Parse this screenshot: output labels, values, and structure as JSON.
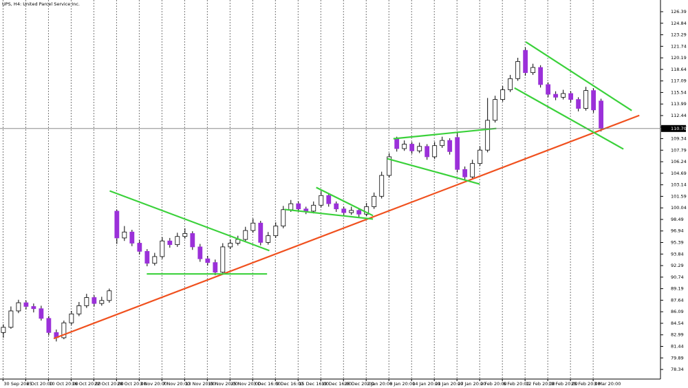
{
  "chart_data": {
    "type": "candlestick",
    "title": "UPS, H4: United Parcel Service Inc.",
    "up_color": "#ffffff",
    "down_color": "#9b30d9",
    "ohlc": [
      [
        83.3,
        84.4,
        82.6,
        84.0
      ],
      [
        84.0,
        86.8,
        83.8,
        86.2
      ],
      [
        86.2,
        87.7,
        85.9,
        87.3
      ],
      [
        87.3,
        87.6,
        86.4,
        86.8
      ],
      [
        86.8,
        87.2,
        86.0,
        86.5
      ],
      [
        86.5,
        86.9,
        84.9,
        85.2
      ],
      [
        85.2,
        85.5,
        82.9,
        83.3
      ],
      [
        83.3,
        83.7,
        82.1,
        82.6
      ],
      [
        82.6,
        84.9,
        82.4,
        84.6
      ],
      [
        84.6,
        86.2,
        84.3,
        85.8
      ],
      [
        85.8,
        87.4,
        85.5,
        86.9
      ],
      [
        86.9,
        88.5,
        86.6,
        88.0
      ],
      [
        88.0,
        88.3,
        86.8,
        87.2
      ],
      [
        87.2,
        88.1,
        86.9,
        87.6
      ],
      [
        87.6,
        89.2,
        87.3,
        88.9
      ],
      [
        99.6,
        99.8,
        95.2,
        96.0
      ],
      [
        96.0,
        97.6,
        95.6,
        96.8
      ],
      [
        96.8,
        97.1,
        94.9,
        95.3
      ],
      [
        95.3,
        95.7,
        93.8,
        94.2
      ],
      [
        94.2,
        94.5,
        92.2,
        92.6
      ],
      [
        92.6,
        94.0,
        92.3,
        93.5
      ],
      [
        93.5,
        96.1,
        93.2,
        95.6
      ],
      [
        95.6,
        96.0,
        94.7,
        95.1
      ],
      [
        95.1,
        96.7,
        94.8,
        96.2
      ],
      [
        96.2,
        97.3,
        95.9,
        96.6
      ],
      [
        96.6,
        96.9,
        94.4,
        94.8
      ],
      [
        94.8,
        95.2,
        92.8,
        93.2
      ],
      [
        93.2,
        93.6,
        92.3,
        92.7
      ],
      [
        92.7,
        93.1,
        91.0,
        91.4
      ],
      [
        91.4,
        95.3,
        91.2,
        94.8
      ],
      [
        94.8,
        95.8,
        94.5,
        95.3
      ],
      [
        95.3,
        96.3,
        95.0,
        95.8
      ],
      [
        95.8,
        97.5,
        95.5,
        97.0
      ],
      [
        97.0,
        98.6,
        96.7,
        98.0
      ],
      [
        98.0,
        98.3,
        95.0,
        95.4
      ],
      [
        95.4,
        96.8,
        95.1,
        96.3
      ],
      [
        96.3,
        98.1,
        96.0,
        97.6
      ],
      [
        97.6,
        100.3,
        97.3,
        99.8
      ],
      [
        99.8,
        101.1,
        99.5,
        100.6
      ],
      [
        100.6,
        100.9,
        99.5,
        99.9
      ],
      [
        99.9,
        100.2,
        99.2,
        99.6
      ],
      [
        99.6,
        100.9,
        99.3,
        100.4
      ],
      [
        100.4,
        102.3,
        100.1,
        101.7
      ],
      [
        101.7,
        102.0,
        100.2,
        100.6
      ],
      [
        100.6,
        100.9,
        99.5,
        99.9
      ],
      [
        99.9,
        100.2,
        99.0,
        99.4
      ],
      [
        99.4,
        100.2,
        99.1,
        99.7
      ],
      [
        99.7,
        100.0,
        98.8,
        99.2
      ],
      [
        99.2,
        100.7,
        98.9,
        100.2
      ],
      [
        100.2,
        102.1,
        99.9,
        101.6
      ],
      [
        101.6,
        104.9,
        101.3,
        104.4
      ],
      [
        104.4,
        107.4,
        104.1,
        106.9
      ],
      [
        109.3,
        109.6,
        107.6,
        108.0
      ],
      [
        108.0,
        109.1,
        107.7,
        108.6
      ],
      [
        108.6,
        108.9,
        107.3,
        107.7
      ],
      [
        107.7,
        108.8,
        107.4,
        108.3
      ],
      [
        108.3,
        108.6,
        106.5,
        106.9
      ],
      [
        106.9,
        108.9,
        106.6,
        108.4
      ],
      [
        108.4,
        109.6,
        108.1,
        109.1
      ],
      [
        109.1,
        109.4,
        107.2,
        107.6
      ],
      [
        109.5,
        110.3,
        104.8,
        105.2
      ],
      [
        105.2,
        105.6,
        103.7,
        104.2
      ],
      [
        104.2,
        106.5,
        103.9,
        106.0
      ],
      [
        106.0,
        108.3,
        105.7,
        107.8
      ],
      [
        107.8,
        114.8,
        107.5,
        111.8
      ],
      [
        111.8,
        115.1,
        111.5,
        114.6
      ],
      [
        114.6,
        116.4,
        114.3,
        115.9
      ],
      [
        115.9,
        117.9,
        115.6,
        117.4
      ],
      [
        117.4,
        120.2,
        117.1,
        119.7
      ],
      [
        121.2,
        121.6,
        117.8,
        118.2
      ],
      [
        118.2,
        119.4,
        117.9,
        118.9
      ],
      [
        118.9,
        119.2,
        116.2,
        116.6
      ],
      [
        116.6,
        116.9,
        114.9,
        115.3
      ],
      [
        115.3,
        115.7,
        114.5,
        114.9
      ],
      [
        114.9,
        115.9,
        114.6,
        115.4
      ],
      [
        115.4,
        115.7,
        114.2,
        114.6
      ],
      [
        114.6,
        114.9,
        113.0,
        113.4
      ],
      [
        113.4,
        116.3,
        113.1,
        115.8
      ],
      [
        115.8,
        116.1,
        112.8,
        113.2
      ],
      [
        114.4,
        114.7,
        110.3,
        110.7
      ]
    ],
    "xlim": [
      -0.4,
      86.9
    ],
    "xticks": [
      {
        "value": 0,
        "label": "30 Sep 2025"
      },
      {
        "value": 3,
        "label": "6 Oct 20:00"
      },
      {
        "value": 6,
        "label": "10 Oct 20:00"
      },
      {
        "value": 9,
        "label": "16 Oct 20:00"
      },
      {
        "value": 12,
        "label": "22 Oct 20:00"
      },
      {
        "value": 15,
        "label": "28 Oct 20:00"
      },
      {
        "value": 18,
        "label": "3 Nov 20:00"
      },
      {
        "value": 21,
        "label": "7 Nov 20:00"
      },
      {
        "value": 24,
        "label": "13 Nov 20:00"
      },
      {
        "value": 27,
        "label": "19 Nov 20:00"
      },
      {
        "value": 30,
        "label": "25 Nov 20:00"
      },
      {
        "value": 33,
        "label": "3 Dec 16:00"
      },
      {
        "value": 36,
        "label": "9 Dec 16:00"
      },
      {
        "value": 39,
        "label": "15 Dec 16:00"
      },
      {
        "value": 42,
        "label": "19 Dec 16:00"
      },
      {
        "value": 45,
        "label": "26 Dec 20:00"
      },
      {
        "value": 48,
        "label": "2 Jan 20:00"
      },
      {
        "value": 51,
        "label": "8 Jan 20:00"
      },
      {
        "value": 54,
        "label": "14 Jan 20:00"
      },
      {
        "value": 57,
        "label": "21 Jan 20:00"
      },
      {
        "value": 60,
        "label": "27 Jan 20:00"
      },
      {
        "value": 63,
        "label": "2 Feb 20:00"
      },
      {
        "value": 66,
        "label": "6 Feb 20:00"
      },
      {
        "value": 69,
        "label": "12 Feb 20:00"
      },
      {
        "value": 72,
        "label": "19 Feb 20:00"
      },
      {
        "value": 75,
        "label": "25 Feb 20:00"
      },
      {
        "value": 78,
        "label": "3 Mar 20:00"
      }
    ],
    "ylim": [
      77.05,
      127.96
    ],
    "yticks": [
      126.39,
      124.84,
      123.29,
      121.74,
      120.19,
      118.64,
      117.09,
      115.54,
      113.99,
      112.44,
      110.89,
      109.34,
      107.79,
      106.24,
      104.69,
      103.14,
      101.59,
      100.04,
      98.49,
      96.94,
      95.39,
      93.84,
      92.29,
      90.74,
      89.19,
      87.64,
      86.09,
      84.54,
      82.99,
      81.44,
      79.89,
      78.34
    ],
    "grid": "x",
    "current_price": {
      "value": 110.7,
      "label": "110.70"
    },
    "trendlines": [
      {
        "color": "#f0501e",
        "points": [
          [
            6.7,
            82.49
          ],
          [
            84.1,
            112.46
          ]
        ]
      },
      {
        "color": "#3ad13a",
        "points": [
          [
            14.1,
            102.32
          ],
          [
            35.2,
            94.3
          ]
        ]
      },
      {
        "color": "#3ad13a",
        "points": [
          [
            19.0,
            91.17
          ],
          [
            34.9,
            91.17
          ]
        ]
      },
      {
        "color": "#3ad13a",
        "points": [
          [
            37.2,
            99.83
          ],
          [
            48.9,
            98.54
          ]
        ]
      },
      {
        "color": "#3ad13a",
        "points": [
          [
            41.4,
            102.78
          ],
          [
            48.9,
            99.0
          ]
        ]
      },
      {
        "color": "#3ad13a",
        "points": [
          [
            51.6,
            109.33
          ],
          [
            65.2,
            110.71
          ]
        ]
      },
      {
        "color": "#3ad13a",
        "points": [
          [
            50.8,
            106.65
          ],
          [
            63.0,
            103.24
          ]
        ]
      },
      {
        "color": "#3ad13a",
        "points": [
          [
            69.1,
            122.33
          ],
          [
            83.1,
            113.11
          ]
        ]
      },
      {
        "color": "#3ad13a",
        "points": [
          [
            67.6,
            116.15
          ],
          [
            82.0,
            107.94
          ]
        ]
      }
    ]
  }
}
